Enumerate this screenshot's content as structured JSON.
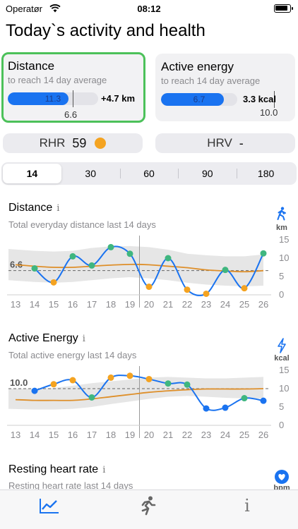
{
  "status_bar": {
    "carrier": "Operatør",
    "time": "08:12"
  },
  "page": {
    "title": "Today`s activity and health"
  },
  "cards": {
    "distance": {
      "title": "Distance",
      "subtitle": "to reach 14 day average",
      "bar_value": "11.3",
      "bar_fraction": 0.67,
      "diff": "+4.7 km",
      "average": "6.6",
      "selected": true
    },
    "energy": {
      "title": "Active energy",
      "subtitle": "to reach 14 day average",
      "bar_value": "6.7",
      "bar_fraction": 0.82,
      "diff": "3.3 kcal",
      "average": "10.0",
      "selected": false
    }
  },
  "pills": {
    "rhr": {
      "label": "RHR",
      "value": "59",
      "dot_color": "#f4a321"
    },
    "hrv": {
      "label": "HRV",
      "value": "-"
    }
  },
  "periods": {
    "options": [
      "14",
      "30",
      "60",
      "90",
      "180"
    ],
    "selected": "14"
  },
  "colors": {
    "green": "#3fb67f",
    "orange": "#f4a321",
    "blue": "#1a73f0",
    "avg_line": "#de8f2a",
    "band": "#dcdcdc"
  },
  "sections": [
    {
      "title": "Distance",
      "subtitle": "Total everyday distance last 14 days",
      "unit_icon": "walking-person-icon",
      "unit": "km"
    },
    {
      "title": "Active Energy",
      "subtitle": "Total active energy last 14 days",
      "unit_icon": "lightning-bolt-icon",
      "unit": "kcal"
    },
    {
      "title": "Resting heart rate",
      "subtitle": "Resting heart rate last 14 days",
      "unit_icon": "heart-icon",
      "unit": "bpm"
    }
  ],
  "chart_data": [
    {
      "type": "line",
      "title": "Distance",
      "x": [
        13,
        14,
        15,
        16,
        17,
        18,
        19,
        20,
        21,
        22,
        23,
        24,
        25,
        26
      ],
      "series": [
        {
          "values": [
            null,
            7.2,
            3.4,
            10.5,
            8.0,
            13.0,
            11.2,
            2.2,
            10.0,
            1.4,
            0.3,
            6.8,
            1.8,
            11.3
          ],
          "point_colors": [
            "",
            "green",
            "orange",
            "green",
            "green",
            "green",
            "green",
            "orange",
            "green",
            "orange",
            "orange",
            "green",
            "orange",
            "green"
          ]
        }
      ],
      "average_line": [
        8.2,
        7.8,
        7.5,
        7.5,
        7.8,
        8.1,
        8.3,
        8.2,
        7.8,
        7.4,
        6.8,
        6.5,
        6.3,
        6.6
      ],
      "band_low": [
        4.0,
        3.5,
        3.3,
        3.5,
        4.0,
        4.5,
        4.8,
        4.5,
        4.0,
        3.3,
        2.8,
        2.5,
        2.3,
        2.5
      ],
      "band_high": [
        12.5,
        12.0,
        11.8,
        12.0,
        12.8,
        13.2,
        13.3,
        13.0,
        12.3,
        11.2,
        10.8,
        10.5,
        10.5,
        11.0
      ],
      "reference_value": 6.6,
      "reference_label": "6.6",
      "today_divider_x": 19.5,
      "ylim": [
        0,
        15
      ],
      "yticks": [
        0,
        5,
        10,
        15
      ],
      "grid": false
    },
    {
      "type": "line",
      "title": "Active Energy",
      "x": [
        13,
        14,
        15,
        16,
        17,
        18,
        19,
        20,
        21,
        22,
        23,
        24,
        25,
        26
      ],
      "series": [
        {
          "values": [
            null,
            9.4,
            11.2,
            12.3,
            7.6,
            13.0,
            13.5,
            12.6,
            11.4,
            11.1,
            4.6,
            4.8,
            7.4,
            6.7
          ],
          "point_colors": [
            "",
            "blue",
            "orange",
            "orange",
            "green",
            "orange",
            "orange",
            "orange",
            "green",
            "green",
            "blue",
            "blue",
            "green",
            "blue"
          ]
        }
      ],
      "average_line": [
        7.0,
        6.8,
        6.8,
        6.8,
        7.2,
        7.8,
        8.4,
        9.0,
        9.4,
        9.7,
        9.9,
        9.9,
        9.9,
        10.0
      ],
      "band_low": [
        4.5,
        4.3,
        4.3,
        4.5,
        5.0,
        5.8,
        6.5,
        7.2,
        7.8,
        8.0,
        7.8,
        7.5,
        7.3,
        7.3
      ],
      "band_high": [
        10.0,
        10.0,
        10.2,
        10.8,
        11.5,
        12.0,
        12.5,
        13.0,
        13.2,
        13.0,
        12.8,
        12.8,
        13.0,
        13.2
      ],
      "reference_value": 10.0,
      "reference_label": "10.0",
      "today_divider_x": 19.5,
      "ylim": [
        0,
        15
      ],
      "yticks": [
        0,
        5,
        10,
        15
      ],
      "grid": false
    }
  ],
  "tab_bar": {
    "tabs": [
      "chart-tab",
      "activity-tab",
      "info-tab"
    ],
    "icons": [
      "line-chart-icon",
      "running-person-icon",
      "info-icon"
    ],
    "selected": 0
  }
}
